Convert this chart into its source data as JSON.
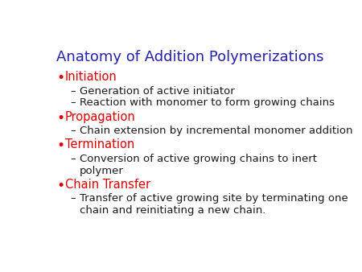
{
  "title": "Anatomy of Addition Polymerizations",
  "title_color": "#2222aa",
  "title_fontsize": 13,
  "background_color": "#ffffff",
  "bullet_color": "#dd0000",
  "subitem_color": "#1a1a1a",
  "bullet_fontsize": 10.5,
  "subitem_fontsize": 9.5,
  "items": [
    {
      "label": "Initiation",
      "color": "#dd0000",
      "subitems": [
        "Generation of active initiator",
        "Reaction with monomer to form growing chains"
      ]
    },
    {
      "label": "Propagation",
      "color": "#dd0000",
      "subitems": [
        "Chain extension by incremental monomer addition"
      ]
    },
    {
      "label": "Termination",
      "color": "#dd0000",
      "subitems": [
        "Conversion of active growing chains to inert\npolymer"
      ]
    },
    {
      "label": "Chain Transfer",
      "color": "#dd0000",
      "subitems": [
        "Transfer of active growing site by terminating one\nchain and reinitiating a new chain."
      ]
    }
  ]
}
